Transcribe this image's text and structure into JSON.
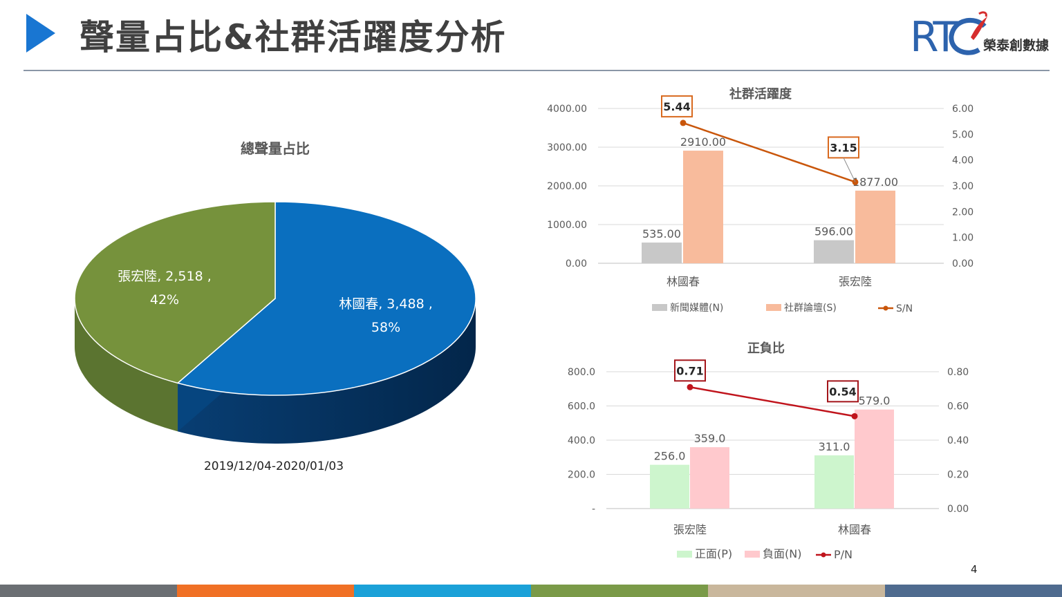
{
  "slide": {
    "title": "聲量占比&社群活躍度分析",
    "logo_text": "榮泰創數據",
    "page_number": "4",
    "colors": {
      "title_arrow": "#1976d2",
      "footer": [
        "#6b6f73",
        "#f07025",
        "#1ba1d8",
        "#7a9a48",
        "#c9b79c",
        "#4f6b8f"
      ]
    }
  },
  "chart_data": [
    {
      "type": "pie",
      "title": "總聲量占比",
      "date_range": "2019/12/04-2020/01/03",
      "slices": [
        {
          "name": "林國春",
          "value": 3488,
          "label_value": "3,488",
          "percent": "58%",
          "color": "#0a6fbf",
          "side_color": "#083e73"
        },
        {
          "name": "張宏陸",
          "value": 2518,
          "label_value": "2,518",
          "percent": "42%",
          "color": "#76923c",
          "side_color": "#5b7430"
        }
      ]
    },
    {
      "type": "bar",
      "title": "社群活躍度",
      "categories": [
        "林國春",
        "張宏陸"
      ],
      "series": [
        {
          "name": "新聞媒體(N)",
          "values": [
            535.0,
            596.0
          ],
          "labels": [
            "535.00",
            "596.00"
          ],
          "color": "#c8c8c8"
        },
        {
          "name": "社群論壇(S)",
          "values": [
            2910.0,
            1877.0
          ],
          "labels": [
            "2910.00",
            "1877.00"
          ],
          "color": "#f8bb9c"
        }
      ],
      "line_series": {
        "name": "S/N",
        "values": [
          5.44,
          3.15
        ],
        "labels": [
          "5.44",
          "3.15"
        ],
        "color": "#c9560b",
        "box_color": "#d8691e"
      },
      "y_left": {
        "min": 0,
        "max": 4000,
        "ticks": [
          "0.00",
          "1000.00",
          "2000.00",
          "3000.00",
          "4000.00"
        ]
      },
      "y_right": {
        "min": 0,
        "max": 6,
        "ticks": [
          "0.00",
          "1.00",
          "2.00",
          "3.00",
          "4.00",
          "5.00",
          "6.00"
        ]
      },
      "grid": true,
      "legend_position": "bottom"
    },
    {
      "type": "bar",
      "title": "正負比",
      "categories": [
        "張宏陸",
        "林國春"
      ],
      "series": [
        {
          "name": "正面(P)",
          "values": [
            256.0,
            311.0
          ],
          "labels": [
            "256.0",
            "311.0"
          ],
          "color": "#cdf5cd"
        },
        {
          "name": "負面(N)",
          "values": [
            359.0,
            579.0
          ],
          "labels": [
            "359.0",
            "579.0"
          ],
          "color": "#ffc9cd"
        }
      ],
      "line_series": {
        "name": "P/N",
        "values": [
          0.71,
          0.54
        ],
        "labels": [
          "0.71",
          "0.54"
        ],
        "color": "#c0141c",
        "box_color": "#a31419"
      },
      "y_left": {
        "min": 0,
        "max": 800,
        "ticks": [
          "-",
          "200.0",
          "400.0",
          "600.0",
          "800.0"
        ]
      },
      "y_right": {
        "min": 0,
        "max": 0.8,
        "ticks": [
          "0.00",
          "0.20",
          "0.40",
          "0.60",
          "0.80"
        ]
      },
      "grid": true,
      "legend_position": "bottom"
    }
  ]
}
